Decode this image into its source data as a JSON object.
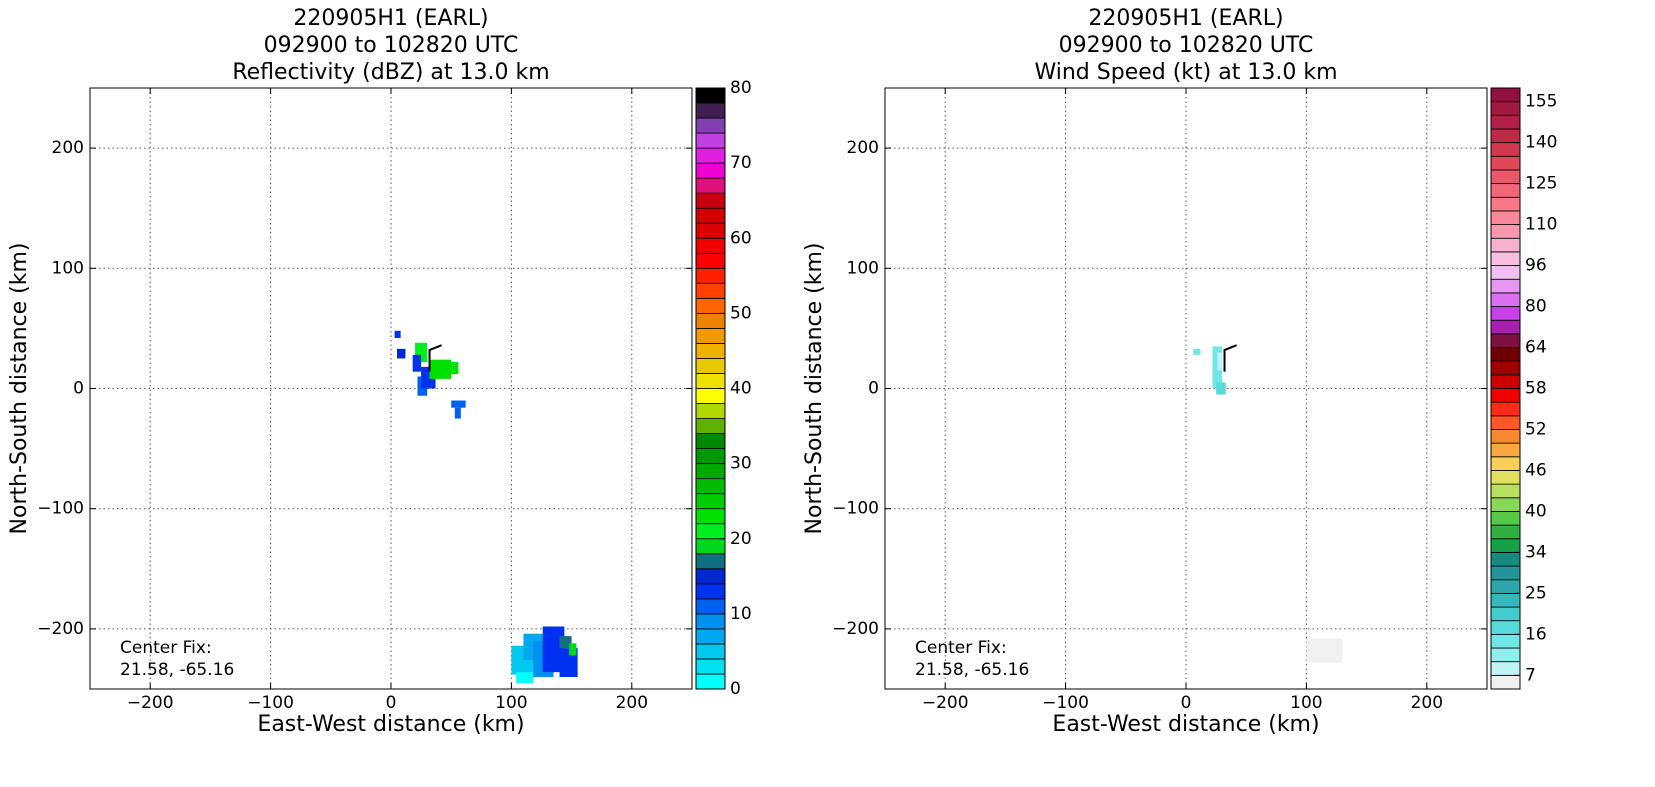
{
  "chart_data": [
    {
      "type": "echo-map",
      "title": [
        "220905H1 (EARL)",
        "092900 to 102820 UTC",
        "Reflectivity (dBZ) at 13.0 km"
      ],
      "xlabel": "East-West distance (km)",
      "ylabel": "North-South distance (km)",
      "annotation": [
        "Center Fix:",
        "21.58, -65.16"
      ],
      "xlim": [
        -250,
        250
      ],
      "ylim": [
        -250,
        250
      ],
      "xticks": [
        {
          "value": -200,
          "label": "−200"
        },
        {
          "value": -100,
          "label": "−100"
        },
        0,
        100,
        200
      ],
      "yticks": [
        {
          "value": -200,
          "label": "−200"
        },
        {
          "value": -100,
          "label": "−100"
        },
        0,
        100,
        200
      ],
      "grid": true,
      "colorbar": {
        "clim": [
          0,
          80
        ],
        "ticks": [
          0,
          10,
          20,
          30,
          40,
          50,
          60,
          70,
          80
        ],
        "colors": [
          "#00ffff",
          "#00e0f0",
          "#00c8f0",
          "#00a8f0",
          "#0090f0",
          "#0060f0",
          "#0030f0",
          "#0028d0",
          "#107080",
          "#00d820",
          "#00ee20",
          "#00e000",
          "#00cc00",
          "#00bb00",
          "#00aa00",
          "#009800",
          "#008800",
          "#60b000",
          "#b0d800",
          "#ffff00",
          "#f0e000",
          "#e8c800",
          "#f0b000",
          "#f09800",
          "#f08000",
          "#ff6400",
          "#ff4000",
          "#ff2000",
          "#ff0000",
          "#f00000",
          "#d80000",
          "#d00000",
          "#c80010",
          "#e0107a",
          "#f000d0",
          "#e020e0",
          "#c040e0",
          "#8040b0",
          "#402050",
          "#000000"
        ]
      },
      "echoes": [
        {
          "x": [
            3,
            8
          ],
          "y": [
            42,
            48
          ],
          "value": 12
        },
        {
          "x": [
            5,
            12
          ],
          "y": [
            25,
            33
          ],
          "value": 14
        },
        {
          "x": [
            20,
            30
          ],
          "y": [
            22,
            38
          ],
          "value": 20
        },
        {
          "x": [
            18,
            25
          ],
          "y": [
            14,
            28
          ],
          "value": 12
        },
        {
          "x": [
            22,
            30
          ],
          "y": [
            -6,
            10
          ],
          "value": 10
        },
        {
          "x": [
            25,
            37
          ],
          "y": [
            0,
            18
          ],
          "value": 13
        },
        {
          "x": [
            32,
            50
          ],
          "y": [
            8,
            24
          ],
          "value": 22
        },
        {
          "x": [
            44,
            56
          ],
          "y": [
            12,
            22
          ],
          "value": 22
        },
        {
          "x": [
            50,
            62
          ],
          "y": [
            -16,
            -10
          ],
          "value": 11
        },
        {
          "x": [
            53,
            58
          ],
          "y": [
            -25,
            -16
          ],
          "value": 11
        },
        {
          "x": [
            100,
            125
          ],
          "y": [
            -238,
            -214
          ],
          "value": 4
        },
        {
          "x": [
            104,
            118
          ],
          "y": [
            -245,
            -236
          ],
          "value": 1
        },
        {
          "x": [
            110,
            128
          ],
          "y": [
            -226,
            -204
          ],
          "value": 6
        },
        {
          "x": [
            118,
            135
          ],
          "y": [
            -240,
            -210
          ],
          "value": 8
        },
        {
          "x": [
            126,
            144
          ],
          "y": [
            -236,
            -198
          ],
          "value": 13
        },
        {
          "x": [
            140,
            155
          ],
          "y": [
            -240,
            -216
          ],
          "value": 13
        },
        {
          "x": [
            140,
            150
          ],
          "y": [
            -216,
            -206
          ],
          "value": 16
        },
        {
          "x": [
            148,
            154
          ],
          "y": [
            -222,
            -212
          ],
          "value": 18
        }
      ]
    },
    {
      "type": "echo-map",
      "title": [
        "220905H1 (EARL)",
        "092900 to 102820 UTC",
        "Wind Speed (kt) at 13.0 km"
      ],
      "xlabel": "East-West distance (km)",
      "ylabel": "North-South distance (km)",
      "annotation": [
        "Center Fix:",
        "21.58, -65.16"
      ],
      "xlim": [
        -250,
        250
      ],
      "ylim": [
        -250,
        250
      ],
      "xticks": [
        {
          "value": -200,
          "label": "−200"
        },
        {
          "value": -100,
          "label": "−100"
        },
        0,
        100,
        200
      ],
      "yticks": [
        {
          "value": -200,
          "label": "−200"
        },
        {
          "value": -100,
          "label": "−100"
        },
        0,
        100,
        200
      ],
      "grid": true,
      "colorbar": {
        "ticks": [
          7,
          16,
          25,
          34,
          40,
          46,
          52,
          58,
          64,
          80,
          96,
          110,
          125,
          140,
          155
        ],
        "colors": [
          "#f0f0f0",
          "#c0f4f4",
          "#90eeee",
          "#70e6e6",
          "#58dada",
          "#44cccc",
          "#38b8bc",
          "#2ca4aa",
          "#22949a",
          "#168a80",
          "#18a048",
          "#30b040",
          "#58c848",
          "#88d858",
          "#b8e060",
          "#e0e060",
          "#f8d058",
          "#f8a840",
          "#f88830",
          "#ff5828",
          "#ff2a18",
          "#f00000",
          "#cc0000",
          "#a00000",
          "#700000",
          "#801040",
          "#a820b0",
          "#c840e8",
          "#d870f0",
          "#e498f0",
          "#f0c0f0",
          "#f8c0e0",
          "#f8b0d0",
          "#f898b0",
          "#f88898",
          "#f87888",
          "#f06878",
          "#e85868",
          "#e04858",
          "#d03850",
          "#c02848",
          "#b02048",
          "#a01840",
          "#901040"
        ]
      },
      "echoes": [
        {
          "x": [
            6,
            12
          ],
          "y": [
            28,
            33
          ],
          "value": 13
        },
        {
          "x": [
            22,
            30
          ],
          "y": [
            0,
            35
          ],
          "value": 15
        },
        {
          "x": [
            25,
            33
          ],
          "y": [
            -5,
            5
          ],
          "value": 17
        },
        {
          "x": [
            26,
            30
          ],
          "y": [
            15,
            30
          ],
          "value": 8
        },
        {
          "x": [
            100,
            130
          ],
          "y": [
            -228,
            -208
          ],
          "value": 6
        }
      ]
    }
  ]
}
